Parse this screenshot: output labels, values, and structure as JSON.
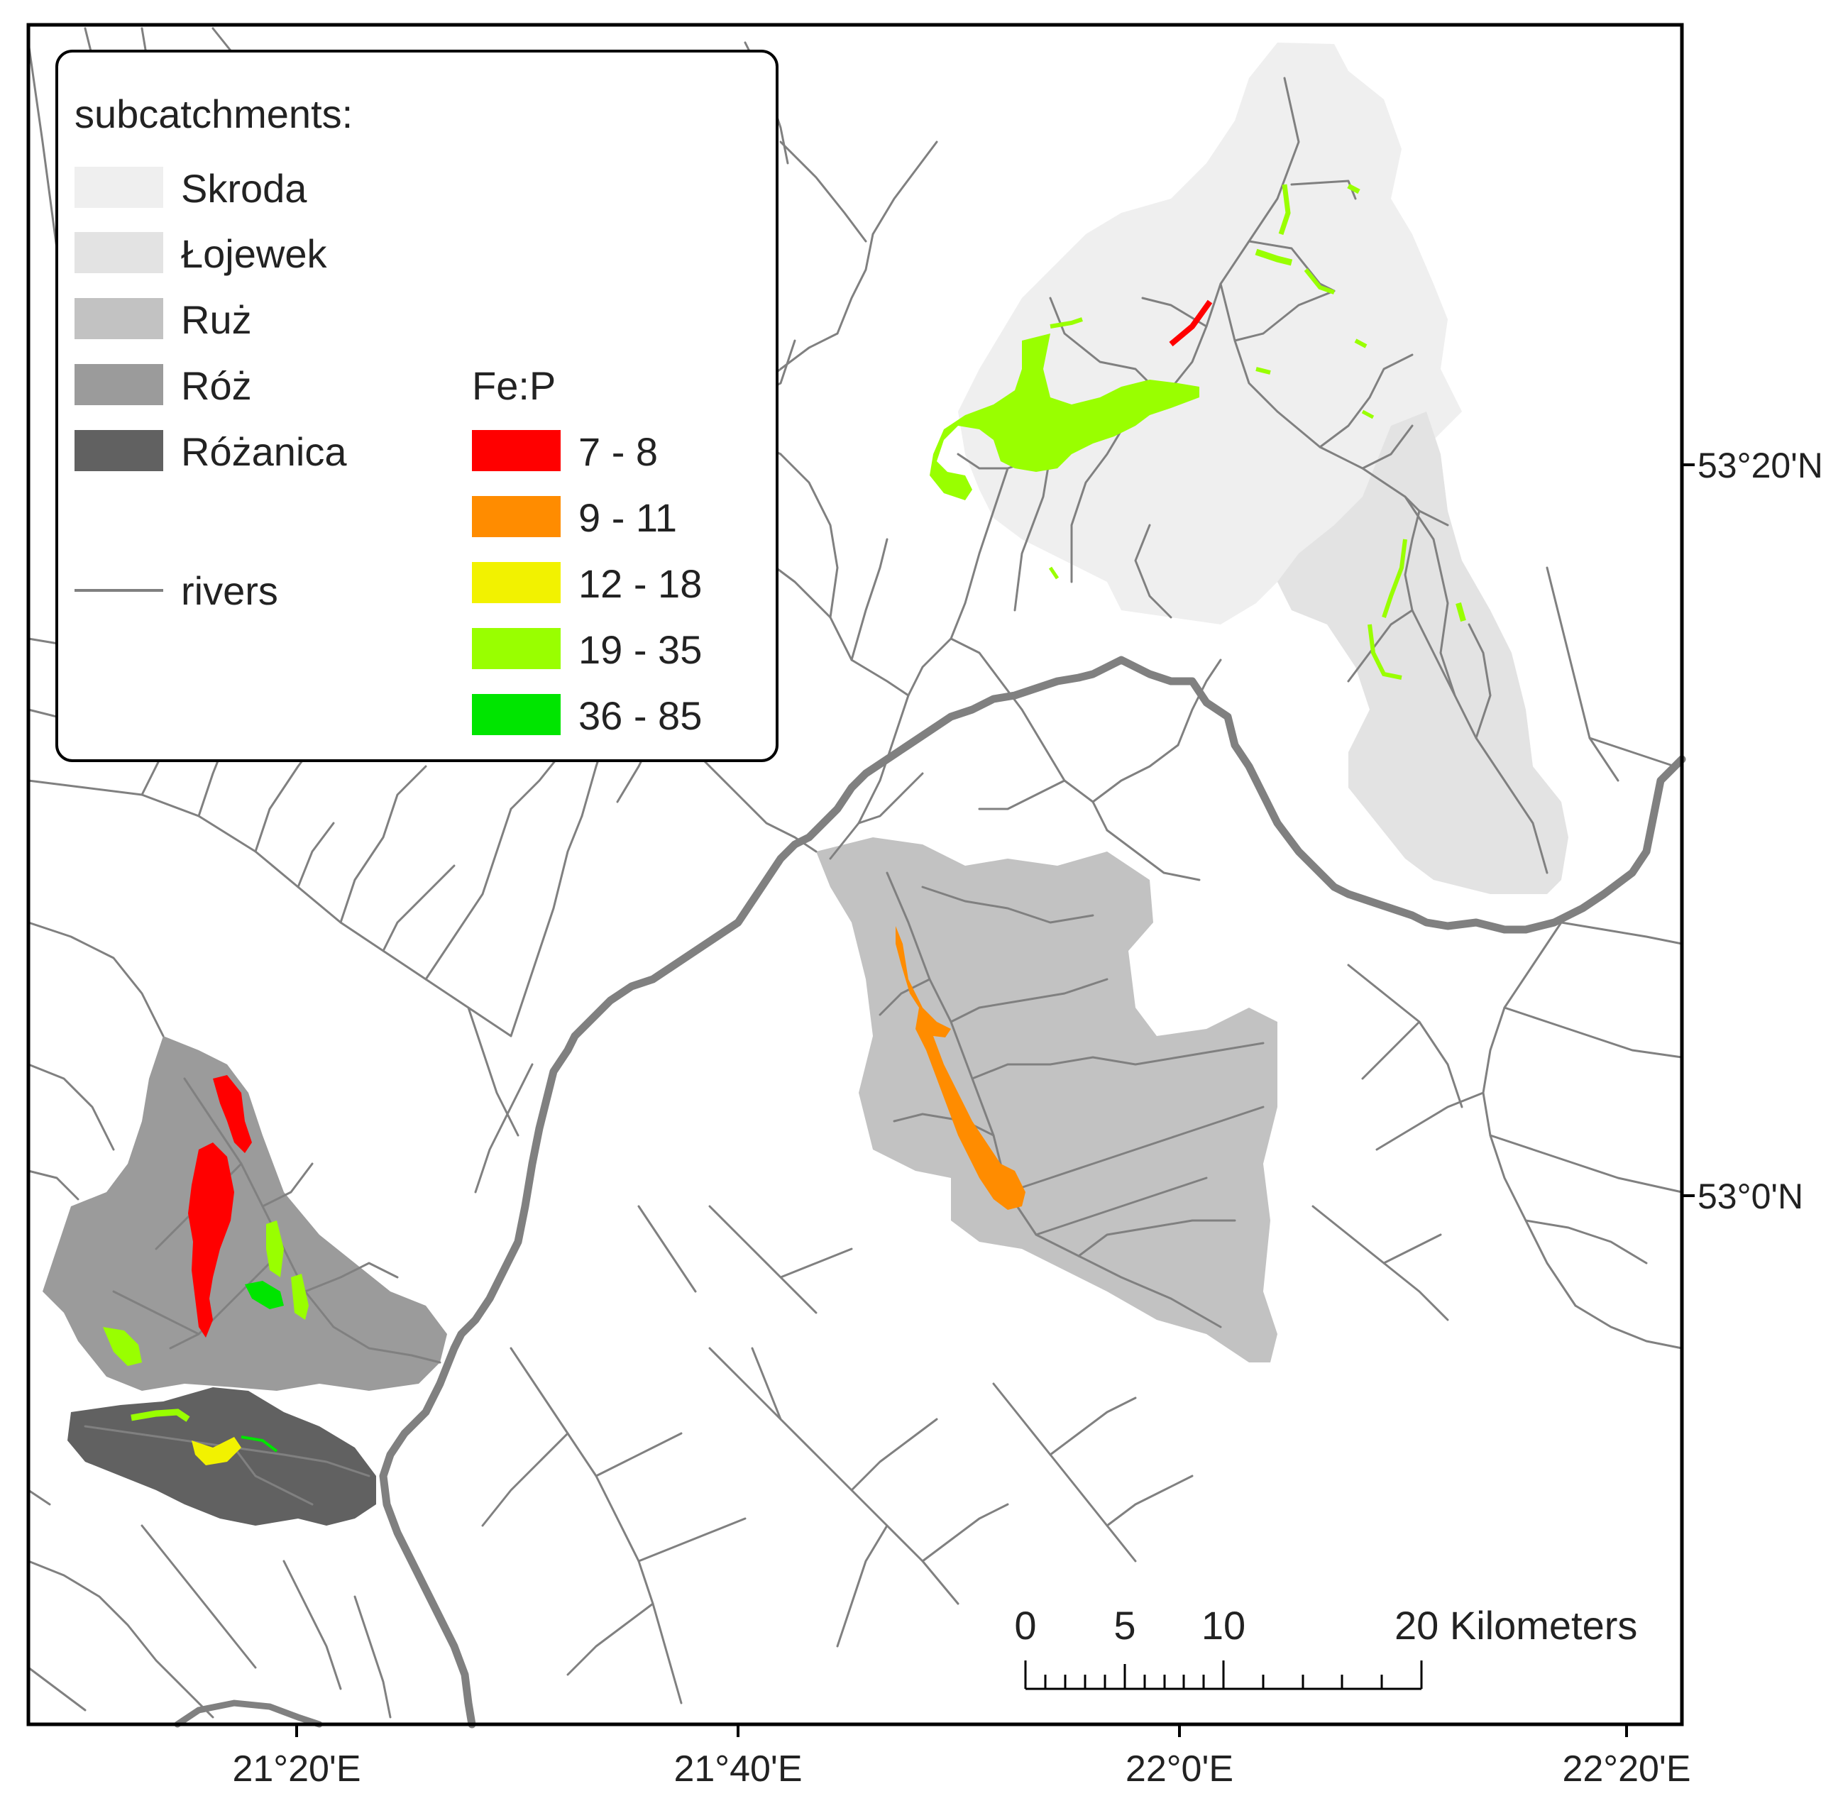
{
  "legend": {
    "subcatchments_title": "subcatchments:",
    "subcatchments": [
      {
        "name": "Skroda",
        "color": "#efefef"
      },
      {
        "name": "Łojewek",
        "color": "#e3e3e3"
      },
      {
        "name": "Ruż",
        "color": "#c2c2c2"
      },
      {
        "name": "Róż",
        "color": "#9b9b9b"
      },
      {
        "name": "Różanica",
        "color": "#616161"
      }
    ],
    "rivers_label": "rivers",
    "river_color": "#808080",
    "ratio_title": "Fe:P",
    "ratio_classes": [
      {
        "label": "7 - 8",
        "color": "#ff0000"
      },
      {
        "label": "9 - 11",
        "color": "#ff8c00"
      },
      {
        "label": "12 - 18",
        "color": "#f2f200"
      },
      {
        "label": "19 - 35",
        "color": "#99ff00"
      },
      {
        "label": "36 - 85",
        "color": "#00e500"
      }
    ]
  },
  "scale_bar": {
    "ticks": [
      "0",
      "5",
      "10",
      "20 Kilometers"
    ]
  },
  "axes": {
    "lon_labels": [
      "21°20'E",
      "21°40'E",
      "22°0'E",
      "22°20'E"
    ],
    "lat_labels": [
      "53°20'N",
      "53°0'N"
    ]
  }
}
